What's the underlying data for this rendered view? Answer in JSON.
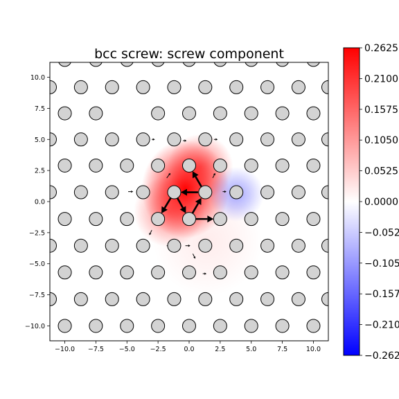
{
  "chart_data": {
    "type": "heatmap",
    "title": "bcc screw: screw component",
    "xlabel": "",
    "ylabel": "",
    "xlim": [
      -11.2,
      11.2
    ],
    "ylim": [
      -11.2,
      11.2
    ],
    "x_ticks": [
      -10.0,
      -7.5,
      -5.0,
      -2.5,
      0.0,
      2.5,
      5.0,
      7.5,
      10.0
    ],
    "x_tick_labels": [
      "−10.0",
      "−7.5",
      "−5.0",
      "−2.5",
      "0.0",
      "2.5",
      "5.0",
      "7.5",
      "10.0"
    ],
    "y_ticks": [
      10.0,
      7.5,
      5.0,
      2.5,
      0.0,
      -2.5,
      -5.0,
      -7.5,
      -10.0
    ],
    "y_tick_labels": [
      "10.0",
      "7.5",
      "5.0",
      "2.5",
      "0.0",
      "−2.5",
      "−5.0",
      "−7.5",
      "−10.0"
    ],
    "colorbar": {
      "min": -0.2625,
      "max": 0.2625,
      "colors": [
        "#0000ff",
        "#ffffff",
        "#ff0000"
      ],
      "ticks": [
        0.2625,
        0.21,
        0.1575,
        0.105,
        0.0525,
        0.0,
        -0.0525,
        -0.105,
        -0.1575,
        -0.21,
        -0.2625
      ],
      "tick_labels": [
        "0.2625",
        "0.2100",
        "0.1575",
        "0.1050",
        "0.0525",
        "0.0000",
        "−0.0525",
        "−0.1050",
        "−0.1575",
        "−0.2100",
        "−0.2625"
      ]
    },
    "atom_fill": "#d3d3d3",
    "atoms": [
      [
        -10.0,
        11.4
      ],
      [
        -7.5,
        11.4
      ],
      [
        -5.0,
        11.4
      ],
      [
        -2.5,
        11.4
      ],
      [
        0.0,
        11.4
      ],
      [
        2.5,
        11.4
      ],
      [
        5.0,
        11.4
      ],
      [
        7.5,
        11.4
      ],
      [
        10.0,
        11.4
      ],
      [
        -11.2,
        9.2
      ],
      [
        -8.7,
        9.2
      ],
      [
        -6.2,
        9.2
      ],
      [
        -3.7,
        9.2
      ],
      [
        -1.2,
        9.2
      ],
      [
        1.3,
        9.2
      ],
      [
        3.8,
        9.2
      ],
      [
        6.3,
        9.2
      ],
      [
        8.8,
        9.2
      ],
      [
        11.2,
        9.2
      ],
      [
        -10.0,
        7.1
      ],
      [
        -7.5,
        7.1
      ],
      [
        -2.5,
        7.1
      ],
      [
        0.0,
        7.1
      ],
      [
        2.5,
        7.1
      ],
      [
        5.0,
        7.1
      ],
      [
        7.5,
        7.1
      ],
      [
        10.0,
        7.1
      ],
      [
        -11.2,
        5.0
      ],
      [
        -8.7,
        5.0
      ],
      [
        -6.2,
        5.0
      ],
      [
        -3.7,
        5.0
      ],
      [
        -1.2,
        5.0
      ],
      [
        1.3,
        5.0
      ],
      [
        3.8,
        5.0
      ],
      [
        6.3,
        5.0
      ],
      [
        8.8,
        5.0
      ],
      [
        11.2,
        5.0
      ],
      [
        -10.0,
        2.9
      ],
      [
        -7.5,
        2.9
      ],
      [
        -5.0,
        2.9
      ],
      [
        -2.5,
        2.9
      ],
      [
        0.0,
        2.9
      ],
      [
        2.5,
        2.9
      ],
      [
        5.0,
        2.9
      ],
      [
        7.5,
        2.9
      ],
      [
        10.0,
        2.9
      ],
      [
        -11.2,
        0.75
      ],
      [
        -8.7,
        0.75
      ],
      [
        -6.2,
        0.75
      ],
      [
        -3.7,
        0.75
      ],
      [
        -1.2,
        0.75
      ],
      [
        1.3,
        0.75
      ],
      [
        3.8,
        0.75
      ],
      [
        6.3,
        0.75
      ],
      [
        8.8,
        0.75
      ],
      [
        11.2,
        0.75
      ],
      [
        -10.0,
        -1.4
      ],
      [
        -7.5,
        -1.4
      ],
      [
        -5.0,
        -1.4
      ],
      [
        -2.5,
        -1.4
      ],
      [
        0.0,
        -1.4
      ],
      [
        2.5,
        -1.4
      ],
      [
        5.0,
        -1.4
      ],
      [
        7.5,
        -1.4
      ],
      [
        10.0,
        -1.4
      ],
      [
        -11.2,
        -3.55
      ],
      [
        -8.7,
        -3.55
      ],
      [
        -6.2,
        -3.55
      ],
      [
        -3.7,
        -3.55
      ],
      [
        -1.2,
        -3.55
      ],
      [
        1.3,
        -3.55
      ],
      [
        3.8,
        -3.55
      ],
      [
        6.3,
        -3.55
      ],
      [
        8.8,
        -3.55
      ],
      [
        11.2,
        -3.55
      ],
      [
        -10.0,
        -5.7
      ],
      [
        -7.5,
        -5.7
      ],
      [
        -5.0,
        -5.7
      ],
      [
        -2.5,
        -5.7
      ],
      [
        0.0,
        -5.7
      ],
      [
        2.5,
        -5.7
      ],
      [
        5.0,
        -5.7
      ],
      [
        7.5,
        -5.7
      ],
      [
        10.0,
        -5.7
      ],
      [
        -11.2,
        -7.85
      ],
      [
        -8.7,
        -7.85
      ],
      [
        -6.2,
        -7.85
      ],
      [
        -3.7,
        -7.85
      ],
      [
        -1.2,
        -7.85
      ],
      [
        1.3,
        -7.85
      ],
      [
        3.8,
        -7.85
      ],
      [
        6.3,
        -7.85
      ],
      [
        8.8,
        -7.85
      ],
      [
        11.2,
        -7.85
      ],
      [
        -10.0,
        -10.0
      ],
      [
        -7.5,
        -10.0
      ],
      [
        -5.0,
        -10.0
      ],
      [
        -2.5,
        -10.0
      ],
      [
        0.0,
        -10.0
      ],
      [
        2.5,
        -10.0
      ],
      [
        5.0,
        -10.0
      ],
      [
        7.5,
        -10.0
      ],
      [
        10.0,
        -10.0
      ]
    ],
    "differential_displacement_arrows": [
      {
        "from": [
          1.25,
          0.75
        ],
        "to": [
          -1.2,
          0.75
        ]
      },
      {
        "from": [
          -1.2,
          0.75
        ],
        "to": [
          -2.5,
          -1.4
        ]
      },
      {
        "from": [
          -1.2,
          0.75
        ],
        "to": [
          0.0,
          -1.4
        ]
      },
      {
        "from": [
          0.0,
          -1.4
        ],
        "to": [
          1.25,
          0.75
        ]
      },
      {
        "from": [
          1.25,
          0.75
        ],
        "to": [
          0.0,
          2.9
        ]
      },
      {
        "from": [
          0.0,
          -1.4
        ],
        "to": [
          2.5,
          -1.4
        ]
      }
    ],
    "small_arrows": [
      {
        "from": [
          -3.0,
          5.0
        ],
        "to": [
          -2.75,
          5.0
        ]
      },
      {
        "from": [
          -0.5,
          4.9
        ],
        "to": [
          -0.2,
          4.9
        ]
      },
      {
        "from": [
          2.0,
          5.0
        ],
        "to": [
          2.3,
          5.0
        ]
      },
      {
        "from": [
          -4.9,
          0.8
        ],
        "to": [
          -4.5,
          0.8
        ]
      },
      {
        "from": [
          2.7,
          0.8
        ],
        "to": [
          3.0,
          0.8
        ]
      },
      {
        "from": [
          -1.8,
          -3.55
        ],
        "to": [
          -1.5,
          -3.55
        ]
      },
      {
        "from": [
          -0.3,
          -3.55
        ],
        "to": [
          0.1,
          -3.55
        ]
      },
      {
        "from": [
          1.1,
          -5.8
        ],
        "to": [
          1.4,
          -5.8
        ]
      },
      {
        "from": [
          0.3,
          -4.2
        ],
        "to": [
          0.5,
          -4.6
        ]
      },
      {
        "from": [
          -1.8,
          1.9
        ],
        "to": [
          -1.5,
          2.3
        ]
      },
      {
        "from": [
          1.9,
          1.9
        ],
        "to": [
          2.1,
          2.3
        ]
      },
      {
        "from": [
          -3.0,
          -2.3
        ],
        "to": [
          -3.2,
          -2.7
        ]
      }
    ],
    "field_peaks": [
      {
        "x": -0.3,
        "y": 1.0,
        "value": 0.13,
        "sigma_x": 1.6,
        "sigma_y": 1.8
      },
      {
        "x": 0.9,
        "y": 2.8,
        "value": 0.07,
        "sigma_x": 1.2,
        "sigma_y": 1.2
      },
      {
        "x": -1.6,
        "y": -0.8,
        "value": 0.06,
        "sigma_x": 1.3,
        "sigma_y": 1.3
      },
      {
        "x": 3.8,
        "y": 0.6,
        "value": -0.045,
        "sigma_x": 1.0,
        "sigma_y": 1.0
      },
      {
        "x": 1.5,
        "y": -3.2,
        "value": 0.01,
        "sigma_x": 2.0,
        "sigma_y": 2.0
      }
    ]
  }
}
